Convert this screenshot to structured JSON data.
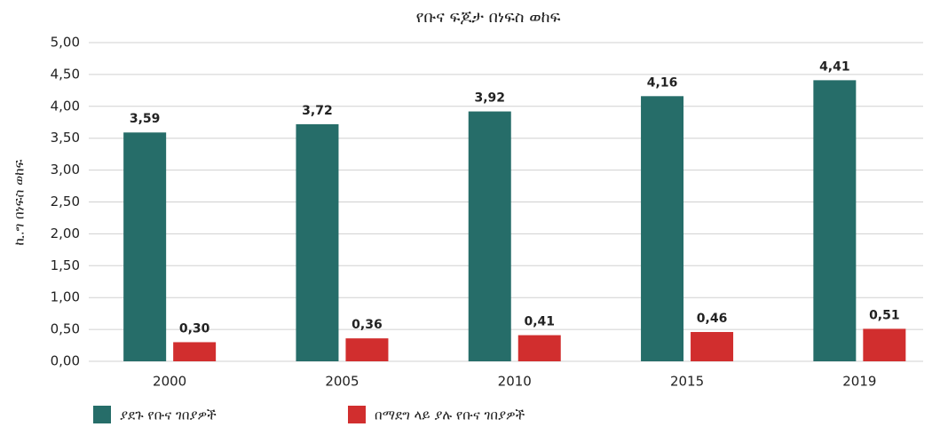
{
  "chart_data": {
    "type": "bar",
    "title": "የቡና ፍጆታ በነፍስ ወከፍ",
    "y_label": "ኪ.ግ በነፍስ ወከፍ",
    "categories": [
      "2000",
      "2005",
      "2010",
      "2015",
      "2019"
    ],
    "series": [
      {
        "name": "ያደጉ የቡና ገበያዎች",
        "color": "#266d69",
        "values": [
          3.59,
          3.72,
          3.92,
          4.16,
          4.41
        ],
        "value_labels": [
          "3,59",
          "3,72",
          "3,92",
          "4,16",
          "4,41"
        ]
      },
      {
        "name": "በማደግ ላይ ያሉ የቡና ገበያዎች",
        "color": "#d12e2e",
        "values": [
          0.3,
          0.36,
          0.41,
          0.46,
          0.51
        ],
        "value_labels": [
          "0,30",
          "0,36",
          "0,41",
          "0,46",
          "0,51"
        ]
      }
    ],
    "ylim": [
      0,
      5
    ],
    "yticks": [
      {
        "value": 0,
        "label": "0,00"
      },
      {
        "value": 0.5,
        "label": "0,50"
      },
      {
        "value": 1,
        "label": "1,00"
      },
      {
        "value": 1.5,
        "label": "1,50"
      },
      {
        "value": 2,
        "label": "2,00"
      },
      {
        "value": 2.5,
        "label": "2,50"
      },
      {
        "value": 3,
        "label": "3,00"
      },
      {
        "value": 3.5,
        "label": "3,50"
      },
      {
        "value": 4,
        "label": "4,00"
      },
      {
        "value": 4.5,
        "label": "4,50"
      },
      {
        "value": 5,
        "label": "5,00"
      }
    ],
    "grid": true,
    "legend": "bottom"
  }
}
